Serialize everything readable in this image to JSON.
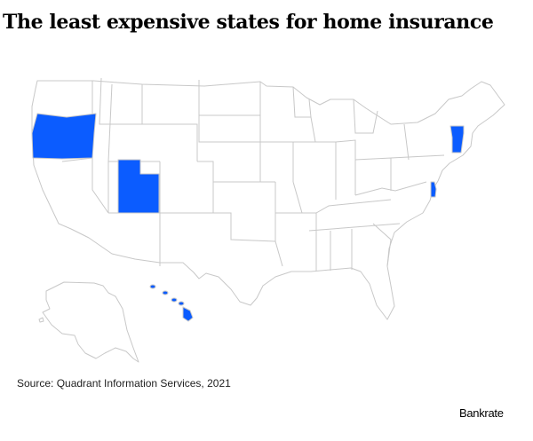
{
  "title": "The least expensive states for home insurance",
  "source": "Source: Quadrant Information Services, 2021",
  "brand": "Bankrate",
  "highlight_color": "#0b5cff",
  "map": {
    "highlighted_states": [
      "Oregon",
      "Utah",
      "Vermont",
      "Delaware",
      "Hawaii"
    ]
  }
}
